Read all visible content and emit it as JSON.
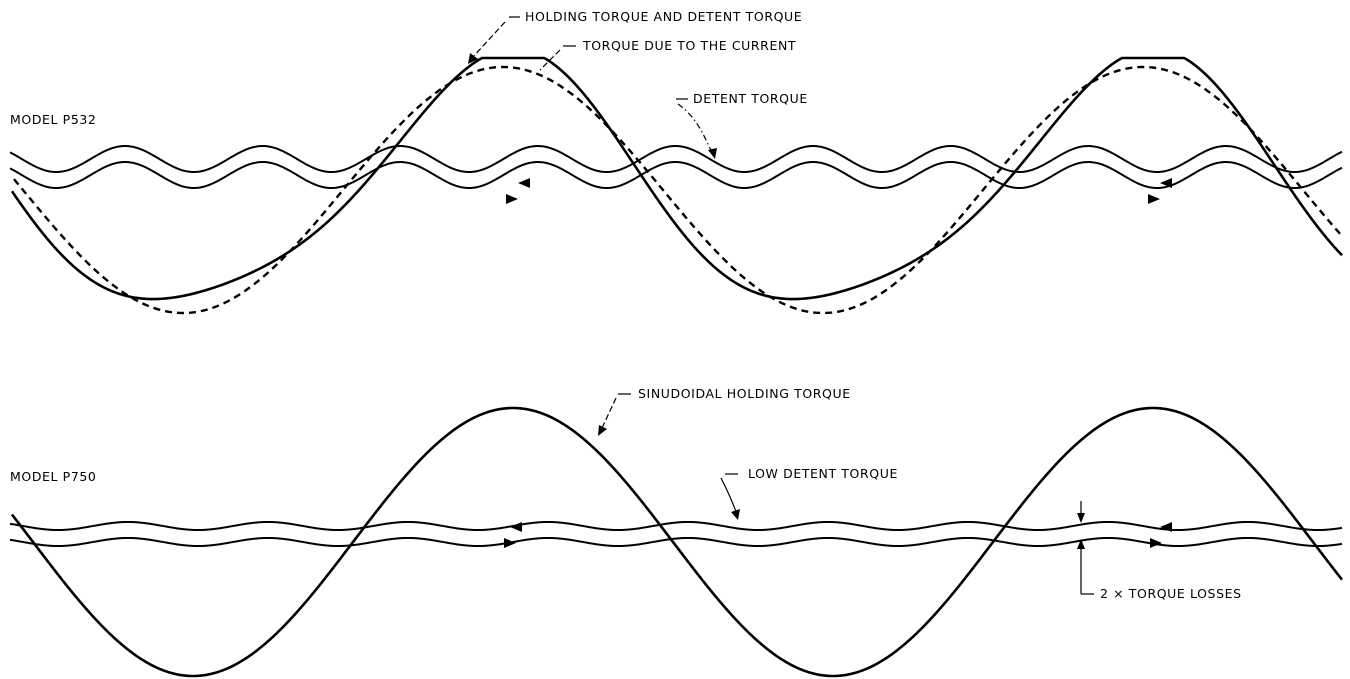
{
  "diagram": {
    "models": {
      "p532": {
        "label": "MODEL P532",
        "annotations": {
          "holding_and_detent": "HOLDING TORQUE AND DETENT TORQUE",
          "current_torque": "TORQUE DUE TO THE CURRENT",
          "detent": "DETENT TORQUE"
        }
      },
      "p750": {
        "label": "MODEL P750",
        "annotations": {
          "sinusoidal": "SINUDOIDAL HOLDING TORQUE",
          "low_detent": "LOW DETENT TORQUE",
          "losses": "2 × TORQUE LOSSES"
        }
      }
    }
  }
}
